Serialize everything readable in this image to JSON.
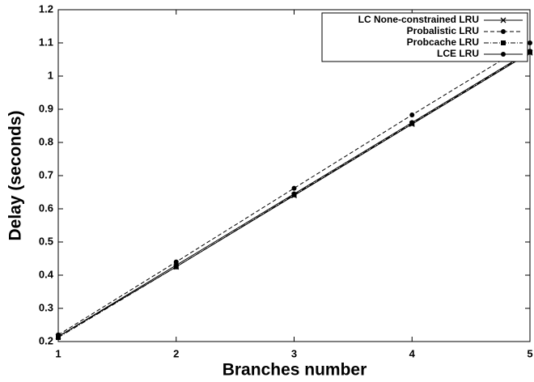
{
  "chart_data": {
    "type": "line",
    "x_label": "Branches number",
    "y_label": "Delay (seconds)",
    "x": [
      1,
      2,
      3,
      4,
      5
    ],
    "xlim": [
      1,
      5
    ],
    "xticks": [
      1,
      2,
      3,
      4,
      5
    ],
    "ylim": [
      0.2,
      1.2
    ],
    "yticks": [
      0.2,
      0.3,
      0.4,
      0.5,
      0.6,
      0.7,
      0.8,
      0.9,
      1,
      1.1,
      1.2
    ],
    "grid": false,
    "legend": "upper right",
    "series": [
      {
        "name": "LC None-constrained LRU",
        "color": "#000000",
        "dash": "solid",
        "marker": "x",
        "values": [
          0.215,
          0.425,
          0.64,
          0.855,
          1.07
        ]
      },
      {
        "name": "Probalistic LRU",
        "color": "#000000",
        "dash": "dashed",
        "marker": "circle",
        "values": [
          0.22,
          0.44,
          0.662,
          0.883,
          1.1
        ]
      },
      {
        "name": "Probcache LRU",
        "color": "#000000",
        "dash": "dashdot",
        "marker": "square",
        "values": [
          0.212,
          0.425,
          0.642,
          0.857,
          1.072
        ]
      },
      {
        "name": "LCE LRU",
        "color": "#000000",
        "dash": "solid",
        "marker": "circle",
        "values": [
          0.215,
          0.43,
          0.645,
          0.86,
          1.075
        ]
      }
    ]
  }
}
